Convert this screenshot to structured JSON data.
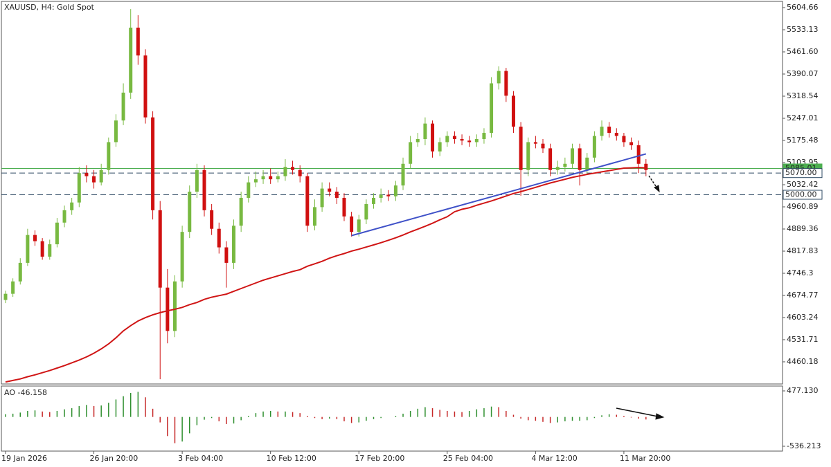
{
  "chart_data": {
    "type": "candlestick",
    "title": "XAUUSD, H4:  Gold Spot",
    "categories": [
      "19 Jan 2026",
      null,
      null,
      null,
      null,
      null,
      null,
      null,
      null,
      null,
      null,
      null,
      "26 Jan 20:00",
      null,
      null,
      null,
      null,
      null,
      null,
      null,
      null,
      null,
      null,
      null,
      "3 Feb 04:00",
      null,
      null,
      null,
      null,
      null,
      null,
      null,
      null,
      null,
      null,
      null,
      "10 Feb 12:00",
      null,
      null,
      null,
      null,
      null,
      null,
      null,
      null,
      null,
      null,
      null,
      "17 Feb 20:00",
      null,
      null,
      null,
      null,
      null,
      null,
      null,
      null,
      null,
      null,
      null,
      "25 Feb 04:00",
      null,
      null,
      null,
      null,
      null,
      null,
      null,
      null,
      null,
      null,
      null,
      "4 Mar 12:00",
      null,
      null,
      null,
      null,
      null,
      null,
      null,
      null,
      null,
      null,
      null,
      "11 Mar 20:00",
      null,
      null,
      null
    ],
    "open": [
      4660,
      4680,
      4720,
      4780,
      4870,
      4850,
      4800,
      4840,
      4910,
      4950,
      4975,
      5070,
      5060,
      5040,
      5080,
      5170,
      5240,
      5330,
      5540,
      5450,
      5250,
      4950,
      4700,
      4560,
      4720,
      4880,
      5010,
      5080,
      4950,
      4890,
      4830,
      4780,
      4900,
      4990,
      5040,
      5050,
      5060,
      5050,
      5060,
      5090,
      5080,
      5060,
      4900,
      4960,
      5020,
      5010,
      4990,
      4930,
      4880,
      4920,
      4970,
      4990,
      5000,
      4995,
      5030,
      5100,
      5170,
      5180,
      5230,
      5140,
      5170,
      5190,
      5180,
      5175,
      5170,
      5180,
      5200,
      5360,
      5400,
      5320,
      5220,
      5080,
      5170,
      5165,
      5150,
      5080,
      5090,
      5100,
      5150,
      5080,
      5120,
      5190,
      5220,
      5200,
      5190,
      5170,
      5160,
      5100
    ],
    "high": [
      4690,
      4730,
      4795,
      4890,
      4885,
      4860,
      4855,
      4925,
      4965,
      4990,
      5090,
      5095,
      5080,
      5100,
      5185,
      5260,
      5360,
      5600,
      5580,
      5470,
      5270,
      4980,
      4760,
      4740,
      4900,
      5030,
      5100,
      5095,
      4970,
      4910,
      4850,
      4920,
      5010,
      5060,
      5075,
      5080,
      5085,
      5075,
      5115,
      5110,
      5095,
      5070,
      4985,
      5040,
      5040,
      5025,
      5005,
      4945,
      4935,
      4985,
      5005,
      5020,
      5015,
      5045,
      5120,
      5190,
      5200,
      5250,
      5240,
      5185,
      5205,
      5205,
      5195,
      5190,
      5195,
      5215,
      5380,
      5415,
      5410,
      5335,
      5235,
      5185,
      5190,
      5180,
      5165,
      5110,
      5120,
      5165,
      5165,
      5135,
      5205,
      5240,
      5235,
      5215,
      5200,
      5185,
      5175,
      5115
    ],
    "low": [
      4650,
      4670,
      4710,
      4770,
      4835,
      4790,
      4790,
      4830,
      4895,
      4935,
      4960,
      5040,
      5020,
      5030,
      5065,
      5155,
      5225,
      5310,
      5420,
      5230,
      4920,
      4404,
      4520,
      4540,
      4700,
      4860,
      4990,
      4930,
      4870,
      4810,
      4700,
      4760,
      4880,
      4975,
      5025,
      5035,
      5035,
      5040,
      5045,
      5065,
      5040,
      4880,
      4885,
      4945,
      4995,
      4970,
      4915,
      4865,
      4865,
      4905,
      4955,
      4975,
      4980,
      4980,
      5015,
      5085,
      5155,
      5160,
      5120,
      5125,
      5155,
      5165,
      5160,
      5155,
      5155,
      5165,
      5185,
      5340,
      5300,
      5200,
      4997,
      5060,
      5150,
      5135,
      5060,
      5065,
      5075,
      5085,
      5030,
      5065,
      5105,
      5175,
      5185,
      5175,
      5155,
      5145,
      5070,
      5060
    ],
    "close": [
      4680,
      4720,
      4780,
      4870,
      4850,
      4800,
      4840,
      4910,
      4950,
      4975,
      5070,
      5060,
      5040,
      5080,
      5170,
      5240,
      5330,
      5540,
      5450,
      5250,
      4950,
      4700,
      4560,
      4720,
      4880,
      5010,
      5080,
      4950,
      4890,
      4830,
      4780,
      4900,
      4990,
      5040,
      5050,
      5060,
      5050,
      5060,
      5090,
      5080,
      5060,
      4900,
      4960,
      5020,
      5010,
      4990,
      4930,
      4880,
      4920,
      4970,
      4990,
      5000,
      4995,
      5030,
      5100,
      5170,
      5180,
      5230,
      5140,
      5170,
      5190,
      5180,
      5175,
      5170,
      5180,
      5200,
      5360,
      5400,
      5320,
      5220,
      5080,
      5170,
      5165,
      5150,
      5080,
      5090,
      5100,
      5150,
      5080,
      5120,
      5190,
      5220,
      5200,
      5190,
      5170,
      5160,
      5100,
      5080
    ],
    "up_color": "#78b941",
    "down_color": "#d01010",
    "lines": [
      {
        "color": "#d01515",
        "values": [
          4395,
          4400,
          4405,
          4412,
          4418,
          4425,
          4432,
          4440,
          4448,
          4457,
          4466,
          4476,
          4488,
          4502,
          4518,
          4538,
          4560,
          4577,
          4592,
          4603,
          4612,
          4619,
          4625,
          4630,
          4636,
          4645,
          4652,
          4662,
          4669,
          4674,
          4679,
          4688,
          4697,
          4706,
          4715,
          4724,
          4731,
          4738,
          4745,
          4752,
          4758,
          4769,
          4777,
          4785,
          4795,
          4803,
          4810,
          4818,
          4824,
          4831,
          4838,
          4845,
          4853,
          4861,
          4870,
          4880,
          4889,
          4898,
          4908,
          4919,
          4929,
          4945,
          4953,
          4958,
          4966,
          4973,
          4980,
          4988,
          4996,
          5004,
          5010,
          5017,
          5024,
          5031,
          5038,
          5044,
          5050,
          5056,
          5061,
          5066,
          5070,
          5074,
          5078,
          5082,
          5086,
          5087,
          5088,
          5087
        ]
      }
    ],
    "trendline": {
      "color": "#3f51c8",
      "x": [
        47,
        87
      ],
      "y": [
        4868,
        5132
      ]
    },
    "levels": [
      {
        "value": 5085.01,
        "label": "5085.01",
        "color": "#4caf50",
        "style": "solid"
      },
      {
        "value": 5070,
        "label": "5070.00",
        "color": "#2e4a63",
        "style": "dashed"
      },
      {
        "value": 5000,
        "label": "5000.00",
        "color": "#2e4a63",
        "style": "dashed"
      }
    ],
    "ylim": [
      4388.6,
      5624.8
    ],
    "yticks": [
      5604.66,
      5533.13,
      {
        "value": 5461.6,
        "label": "5461.60"
      },
      5390.07,
      5318.54,
      5247.01,
      5175.48,
      5103.95,
      5032.42,
      4960.89,
      4889.36,
      4817.83,
      4746.3,
      4674.77,
      4603.24,
      4531.71,
      4460.18
    ],
    "ao": {
      "name": "AO",
      "up_color": "#2f8f2f",
      "down_color": "#c62828",
      "values": [
        50,
        60,
        80,
        110,
        120,
        100,
        90,
        110,
        140,
        160,
        200,
        220,
        200,
        210,
        260,
        320,
        380,
        440,
        460,
        360,
        150,
        -100,
        -350,
        -480,
        -450,
        -300,
        -150,
        -50,
        -20,
        -80,
        -130,
        -120,
        -60,
        20,
        70,
        100,
        110,
        100,
        100,
        90,
        70,
        20,
        -20,
        -40,
        -30,
        -40,
        -80,
        -110,
        -100,
        -70,
        -40,
        -20,
        0,
        20,
        60,
        110,
        150,
        180,
        160,
        130,
        110,
        100,
        90,
        110,
        140,
        160,
        190,
        180,
        110,
        40,
        -30,
        -60,
        -70,
        -90,
        -110,
        -100,
        -80,
        -70,
        -70,
        -60,
        -20,
        30,
        50,
        40,
        20,
        -10,
        -30,
        -46.158
      ],
      "ylim": [
        -624.9,
        565.8
      ],
      "yticks": [
        {
          "value": 477.13,
          "label": "477.130"
        },
        -536.213
      ]
    }
  }
}
